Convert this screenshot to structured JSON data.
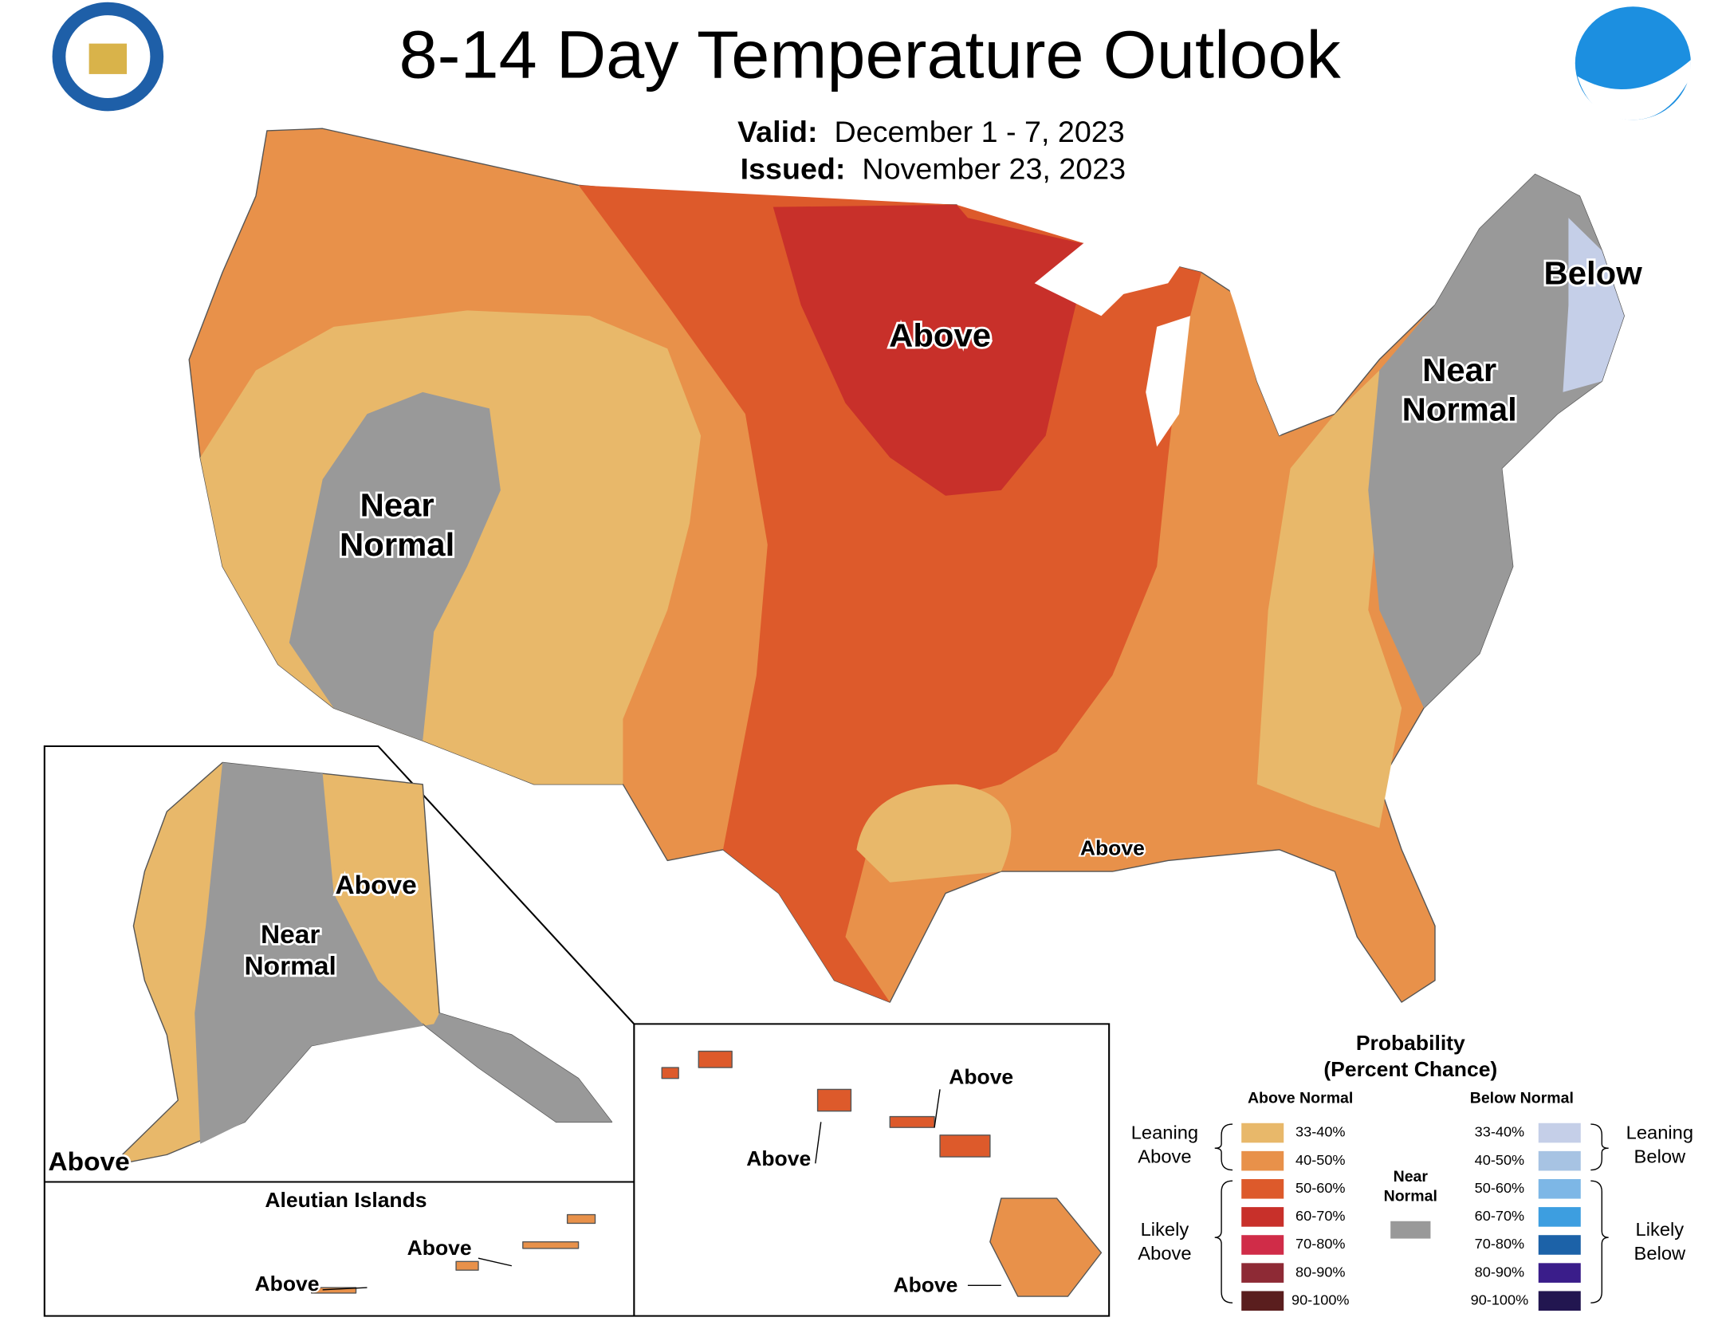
{
  "header": {
    "title": "8-14 Day Temperature Outlook",
    "valid_label": "Valid:",
    "valid": "December 1 - 7, 2023",
    "issued_label": "Issued:",
    "issued": "November 23, 2023"
  },
  "map_labels": [
    {
      "lines": [
        "Above"
      ]
    },
    {
      "lines": [
        "Below"
      ]
    },
    {
      "lines": [
        "Near",
        "Normal"
      ]
    },
    {
      "lines": [
        "Near",
        "Normal"
      ]
    },
    {
      "lines": [
        "Above"
      ]
    },
    {
      "lines": [
        "Near",
        "Normal"
      ]
    },
    {
      "lines": [
        "Above"
      ]
    },
    {
      "lines": [
        "Above"
      ]
    },
    {
      "lines": [
        "Above"
      ]
    },
    {
      "lines": [
        "Above"
      ]
    },
    {
      "lines": [
        "Above"
      ]
    },
    {
      "lines": [
        "Above"
      ]
    },
    {
      "lines": [
        "Above"
      ]
    }
  ],
  "aleutian_title": "Aleutian Islands",
  "legend": {
    "title": [
      "Probability",
      "(Percent Chance)"
    ],
    "above_header": "Above Normal",
    "below_header": "Below Normal",
    "above": [
      {
        "label": "33-40%",
        "color": "#e8b86a"
      },
      {
        "label": "40-50%",
        "color": "#e8914a"
      },
      {
        "label": "50-60%",
        "color": "#dd5a2b"
      },
      {
        "label": "60-70%",
        "color": "#c8302a"
      },
      {
        "label": "70-80%",
        "color": "#d02c48"
      },
      {
        "label": "80-90%",
        "color": "#8e2a35"
      },
      {
        "label": "90-100%",
        "color": "#5a1e1e"
      }
    ],
    "below": [
      {
        "label": "33-40%",
        "color": "#c5cfe8"
      },
      {
        "label": "40-50%",
        "color": "#a7c3e3"
      },
      {
        "label": "50-60%",
        "color": "#7db7e6"
      },
      {
        "label": "60-70%",
        "color": "#3d9ee0"
      },
      {
        "label": "70-80%",
        "color": "#1c62a8"
      },
      {
        "label": "80-90%",
        "color": "#3a1d8a"
      },
      {
        "label": "90-100%",
        "color": "#221650"
      }
    ],
    "near_normal": [
      "Near",
      "Normal"
    ],
    "near_color": "#999999",
    "leaning_above": [
      "Leaning",
      "Above"
    ],
    "likely_above": [
      "Likely",
      "Above"
    ],
    "leaning_below": [
      "Leaning",
      "Below"
    ],
    "likely_below": [
      "Likely",
      "Below"
    ]
  }
}
